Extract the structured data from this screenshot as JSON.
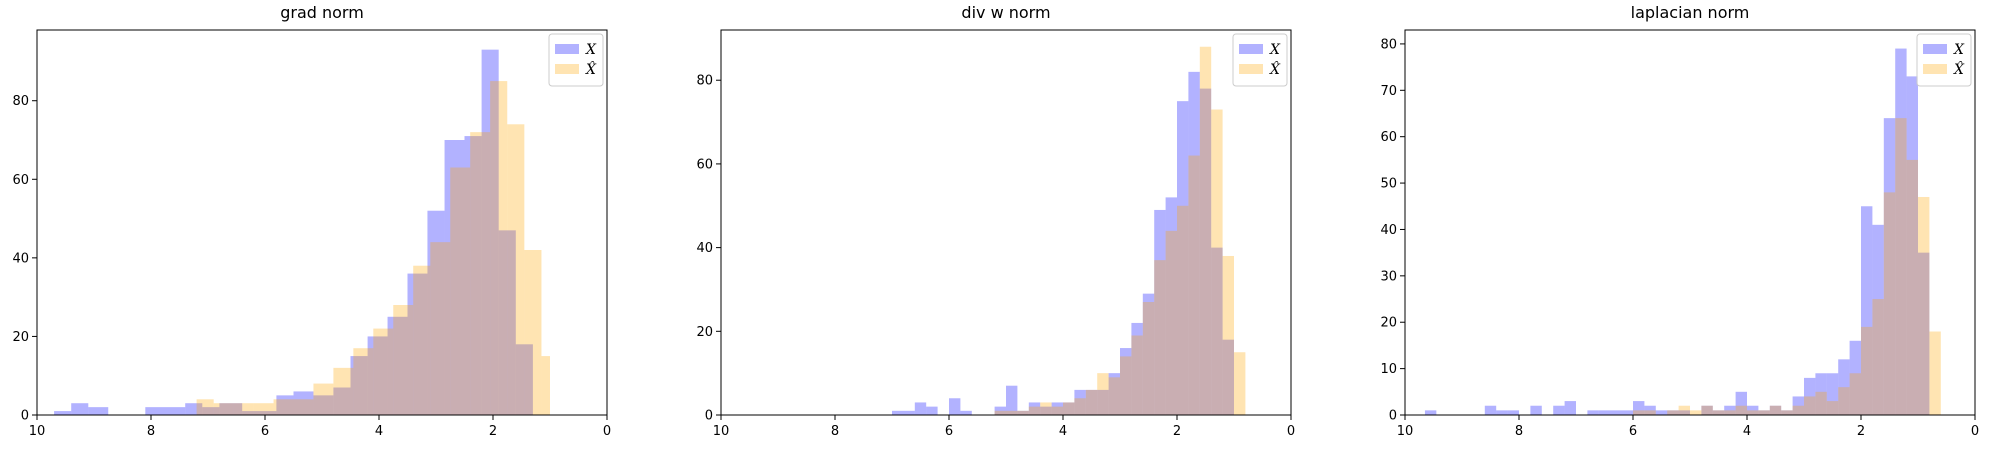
{
  "chart_data": [
    {
      "type": "histogram",
      "title": "grad norm",
      "xlim": [
        10,
        0
      ],
      "ylim": [
        0,
        98
      ],
      "xticks": [
        10,
        8,
        6,
        4,
        2,
        0
      ],
      "yticks": [
        0,
        20,
        40,
        60,
        80
      ],
      "legend": {
        "placement": "top-right",
        "entries": [
          "X",
          "X̂"
        ]
      },
      "series": [
        {
          "name": "X",
          "color": "#0000ff",
          "alpha": 0.3,
          "bins": [
            [
              9.7,
              9.4,
              1
            ],
            [
              9.4,
              9.1,
              3
            ],
            [
              9.1,
              8.75,
              2
            ],
            [
              8.75,
              8.1,
              0
            ],
            [
              8.1,
              7.4,
              2
            ],
            [
              7.4,
              7.1,
              3
            ],
            [
              7.1,
              6.8,
              2
            ],
            [
              6.8,
              6.4,
              3
            ],
            [
              6.4,
              5.8,
              1
            ],
            [
              5.8,
              5.5,
              5
            ],
            [
              5.5,
              5.15,
              6
            ],
            [
              5.15,
              4.8,
              5
            ],
            [
              4.8,
              4.5,
              7
            ],
            [
              4.5,
              4.2,
              15
            ],
            [
              4.2,
              3.85,
              20
            ],
            [
              3.85,
              3.5,
              25
            ],
            [
              3.5,
              3.15,
              36
            ],
            [
              3.15,
              2.85,
              52
            ],
            [
              2.85,
              2.5,
              70
            ],
            [
              2.5,
              2.2,
              71
            ],
            [
              2.2,
              1.9,
              93
            ],
            [
              1.9,
              1.6,
              47
            ],
            [
              1.6,
              1.3,
              18
            ]
          ]
        },
        {
          "name": "X̂",
          "color": "#ffa500",
          "alpha": 0.3,
          "bins": [
            [
              7.2,
              6.9,
              4
            ],
            [
              6.9,
              6.55,
              3
            ],
            [
              6.55,
              6.2,
              3
            ],
            [
              6.2,
              5.85,
              3
            ],
            [
              5.85,
              5.5,
              4
            ],
            [
              5.5,
              5.15,
              4
            ],
            [
              5.15,
              4.8,
              8
            ],
            [
              4.8,
              4.45,
              12
            ],
            [
              4.45,
              4.1,
              17
            ],
            [
              4.1,
              3.75,
              22
            ],
            [
              3.75,
              3.4,
              28
            ],
            [
              3.4,
              3.1,
              38
            ],
            [
              3.1,
              2.75,
              44
            ],
            [
              2.75,
              2.4,
              63
            ],
            [
              2.4,
              2.05,
              72
            ],
            [
              2.05,
              1.75,
              85
            ],
            [
              1.75,
              1.45,
              74
            ],
            [
              1.45,
              1.15,
              42
            ],
            [
              1.15,
              1.0,
              15
            ]
          ]
        }
      ]
    },
    {
      "type": "histogram",
      "title": "div w norm",
      "xlim": [
        10,
        0
      ],
      "ylim": [
        0,
        92
      ],
      "xticks": [
        10,
        8,
        6,
        4,
        2,
        0
      ],
      "yticks": [
        0,
        20,
        40,
        60,
        80
      ],
      "legend": {
        "placement": "top-right",
        "entries": [
          "X",
          "X̂"
        ]
      },
      "series": [
        {
          "name": "X",
          "color": "#0000ff",
          "alpha": 0.3,
          "bins": [
            [
              7.0,
              6.6,
              1
            ],
            [
              6.6,
              6.4,
              3
            ],
            [
              6.4,
              6.2,
              2
            ],
            [
              6.2,
              6.0,
              0
            ],
            [
              6.0,
              5.8,
              4
            ],
            [
              5.8,
              5.6,
              1
            ],
            [
              5.6,
              5.2,
              0
            ],
            [
              5.2,
              5.0,
              2
            ],
            [
              5.0,
              4.8,
              7
            ],
            [
              4.8,
              4.6,
              1
            ],
            [
              4.6,
              4.4,
              3
            ],
            [
              4.4,
              4.2,
              2
            ],
            [
              4.2,
              4.0,
              3
            ],
            [
              4.0,
              3.8,
              3
            ],
            [
              3.8,
              3.6,
              6
            ],
            [
              3.6,
              3.4,
              6
            ],
            [
              3.4,
              3.2,
              6
            ],
            [
              3.2,
              3.0,
              10
            ],
            [
              3.0,
              2.8,
              16
            ],
            [
              2.8,
              2.6,
              22
            ],
            [
              2.6,
              2.4,
              29
            ],
            [
              2.4,
              2.2,
              49
            ],
            [
              2.2,
              2.0,
              52
            ],
            [
              2.0,
              1.8,
              75
            ],
            [
              1.8,
              1.6,
              82
            ],
            [
              1.6,
              1.4,
              78
            ],
            [
              1.4,
              1.2,
              40
            ],
            [
              1.2,
              1.0,
              18
            ]
          ]
        },
        {
          "name": "X̂",
          "color": "#ffa500",
          "alpha": 0.3,
          "bins": [
            [
              5.2,
              4.8,
              1
            ],
            [
              4.8,
              4.6,
              1
            ],
            [
              4.6,
              4.4,
              2
            ],
            [
              4.4,
              4.2,
              3
            ],
            [
              4.2,
              4.0,
              2
            ],
            [
              4.0,
              3.8,
              3
            ],
            [
              3.8,
              3.6,
              4
            ],
            [
              3.6,
              3.4,
              6
            ],
            [
              3.4,
              3.2,
              10
            ],
            [
              3.2,
              3.0,
              9
            ],
            [
              3.0,
              2.8,
              14
            ],
            [
              2.8,
              2.6,
              19
            ],
            [
              2.6,
              2.4,
              27
            ],
            [
              2.4,
              2.2,
              37
            ],
            [
              2.2,
              2.0,
              44
            ],
            [
              2.0,
              1.8,
              50
            ],
            [
              1.8,
              1.6,
              62
            ],
            [
              1.6,
              1.4,
              88
            ],
            [
              1.4,
              1.2,
              73
            ],
            [
              1.2,
              1.0,
              38
            ],
            [
              1.0,
              0.8,
              15
            ]
          ]
        }
      ]
    },
    {
      "type": "histogram",
      "title": "laplacian norm",
      "xlim": [
        10,
        0
      ],
      "ylim": [
        0,
        83
      ],
      "xticks": [
        10,
        8,
        6,
        4,
        2,
        0
      ],
      "yticks": [
        0,
        10,
        20,
        30,
        40,
        50,
        60,
        70,
        80
      ],
      "legend": {
        "placement": "top-right",
        "entries": [
          "X",
          "X̂"
        ]
      },
      "series": [
        {
          "name": "X",
          "color": "#0000ff",
          "alpha": 0.3,
          "bins": [
            [
              9.65,
              9.45,
              1
            ],
            [
              9.45,
              8.6,
              0
            ],
            [
              8.6,
              8.4,
              2
            ],
            [
              8.4,
              8.2,
              1
            ],
            [
              8.2,
              8.0,
              1
            ],
            [
              8.0,
              7.8,
              0
            ],
            [
              7.8,
              7.6,
              2
            ],
            [
              7.6,
              7.4,
              0
            ],
            [
              7.4,
              7.2,
              2
            ],
            [
              7.2,
              7.0,
              3
            ],
            [
              7.0,
              6.8,
              0
            ],
            [
              6.8,
              6.6,
              1
            ],
            [
              6.6,
              6.0,
              1
            ],
            [
              6.0,
              5.8,
              3
            ],
            [
              5.8,
              5.6,
              2
            ],
            [
              5.6,
              5.0,
              1
            ],
            [
              5.0,
              4.8,
              0
            ],
            [
              4.8,
              4.6,
              2
            ],
            [
              4.6,
              4.4,
              1
            ],
            [
              4.4,
              4.2,
              2
            ],
            [
              4.2,
              4.0,
              5
            ],
            [
              4.0,
              3.8,
              2
            ],
            [
              3.8,
              3.6,
              1
            ],
            [
              3.6,
              3.4,
              2
            ],
            [
              3.4,
              3.2,
              1
            ],
            [
              3.2,
              3.0,
              4
            ],
            [
              3.0,
              2.8,
              8
            ],
            [
              2.8,
              2.6,
              9
            ],
            [
              2.6,
              2.4,
              9
            ],
            [
              2.4,
              2.2,
              12
            ],
            [
              2.2,
              2.0,
              16
            ],
            [
              2.0,
              1.8,
              45
            ],
            [
              1.8,
              1.6,
              41
            ],
            [
              1.6,
              1.4,
              64
            ],
            [
              1.4,
              1.2,
              79
            ],
            [
              1.2,
              1.0,
              73
            ],
            [
              1.0,
              0.8,
              35
            ]
          ]
        },
        {
          "name": "X̂",
          "color": "#ffa500",
          "alpha": 0.3,
          "bins": [
            [
              6.0,
              5.8,
              1
            ],
            [
              5.8,
              5.6,
              1
            ],
            [
              5.6,
              5.4,
              0
            ],
            [
              5.4,
              5.2,
              1
            ],
            [
              5.2,
              5.0,
              2
            ],
            [
              5.0,
              4.8,
              1
            ],
            [
              4.8,
              4.6,
              2
            ],
            [
              4.6,
              4.4,
              1
            ],
            [
              4.4,
              4.2,
              1
            ],
            [
              4.2,
              4.0,
              2
            ],
            [
              4.0,
              3.8,
              1
            ],
            [
              3.8,
              3.6,
              1
            ],
            [
              3.6,
              3.4,
              2
            ],
            [
              3.4,
              3.2,
              1
            ],
            [
              3.2,
              3.0,
              2
            ],
            [
              3.0,
              2.8,
              4
            ],
            [
              2.8,
              2.6,
              5
            ],
            [
              2.6,
              2.4,
              3
            ],
            [
              2.4,
              2.2,
              6
            ],
            [
              2.2,
              2.0,
              9
            ],
            [
              2.0,
              1.8,
              19
            ],
            [
              1.8,
              1.6,
              25
            ],
            [
              1.6,
              1.4,
              48
            ],
            [
              1.4,
              1.2,
              64
            ],
            [
              1.2,
              1.0,
              55
            ],
            [
              1.0,
              0.8,
              47
            ],
            [
              0.8,
              0.6,
              18
            ]
          ]
        }
      ]
    }
  ]
}
